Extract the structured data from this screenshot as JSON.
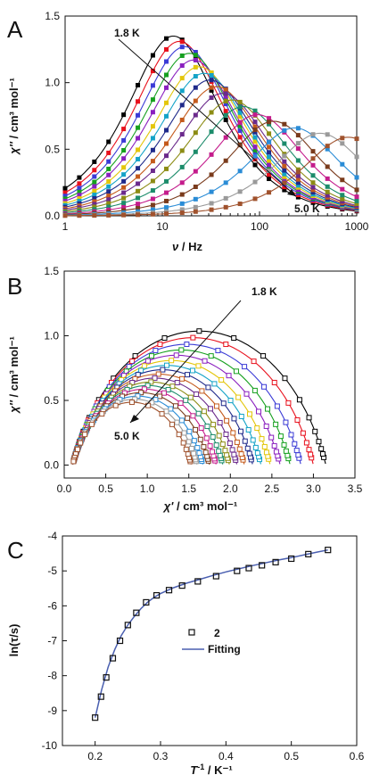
{
  "panels": [
    {
      "letter": "A",
      "xlabel_main": "ν",
      "xlabel_unit": " / Hz",
      "ylabel_main": "χ''",
      "ylabel_unit": " / cm³ mol⁻¹",
      "annotations": [
        "1.8 K",
        "5.0 K"
      ]
    },
    {
      "letter": "B",
      "xlabel_main": "χ'",
      "xlabel_unit": " / cm³ mol⁻¹",
      "ylabel_main": "χ''",
      "ylabel_unit": " / cm³ mol⁻¹",
      "annotations": [
        "1.8 K",
        "5.0 K"
      ]
    },
    {
      "letter": "C",
      "xlabel_main": "T",
      "xlabel_sup": "-1",
      "xlabel_unit": " / K⁻¹",
      "ylabel_main": "ln(τ/s)",
      "legend": [
        "2",
        "Fitting"
      ]
    }
  ],
  "chart_data": [
    {
      "type": "line",
      "xscale": "log",
      "xlim": [
        1,
        1000
      ],
      "ylim": [
        0,
        1.5
      ],
      "xticks": [
        "1",
        "10",
        "100",
        "1000"
      ],
      "yticks": [
        "0.0",
        "0.5",
        "1.0",
        "1.5"
      ],
      "x": [
        1,
        1.4,
        2,
        2.8,
        4,
        5.6,
        8,
        11,
        16,
        22,
        32,
        45,
        63,
        90,
        125,
        180,
        250,
        355,
        500,
        710,
        1000
      ],
      "temperatures_K": [
        1.8,
        2.0,
        2.2,
        2.4,
        2.6,
        2.8,
        3.0,
        3.2,
        3.4,
        3.6,
        3.8,
        4.0,
        4.2,
        4.4,
        4.6,
        4.8,
        5.0
      ],
      "series_params": [
        {
          "peak": 1.35,
          "fpeak": 13
        },
        {
          "peak": 1.31,
          "fpeak": 15
        },
        {
          "peak": 1.27,
          "fpeak": 17
        },
        {
          "peak": 1.22,
          "fpeak": 19
        },
        {
          "peak": 1.17,
          "fpeak": 21
        },
        {
          "peak": 1.12,
          "fpeak": 24
        },
        {
          "peak": 1.07,
          "fpeak": 27
        },
        {
          "peak": 1.02,
          "fpeak": 31
        },
        {
          "peak": 0.97,
          "fpeak": 36
        },
        {
          "peak": 0.92,
          "fpeak": 42
        },
        {
          "peak": 0.87,
          "fpeak": 52
        },
        {
          "peak": 0.82,
          "fpeak": 68
        },
        {
          "peak": 0.76,
          "fpeak": 95
        },
        {
          "peak": 0.71,
          "fpeak": 140
        },
        {
          "peak": 0.66,
          "fpeak": 230
        },
        {
          "peak": 0.62,
          "fpeak": 420
        },
        {
          "peak": 0.59,
          "fpeak": 820
        }
      ]
    },
    {
      "type": "scatter",
      "xlim": [
        0,
        3.5
      ],
      "ylim": [
        -0.1,
        1.5
      ],
      "xticks": [
        "0.0",
        "0.5",
        "1.0",
        "1.5",
        "2.0",
        "2.5",
        "3.0",
        "3.5"
      ],
      "yticks": [
        "0.0",
        "0.5",
        "1.0",
        "1.5"
      ],
      "series_params": [
        {
          "chi_s": 0.1,
          "chi_t": 3.15,
          "alpha": 0.24
        },
        {
          "chi_s": 0.1,
          "chi_t": 3.0,
          "alpha": 0.24
        },
        {
          "chi_s": 0.1,
          "chi_t": 2.85,
          "alpha": 0.24
        },
        {
          "chi_s": 0.1,
          "chi_t": 2.72,
          "alpha": 0.24
        },
        {
          "chi_s": 0.1,
          "chi_t": 2.6,
          "alpha": 0.24
        },
        {
          "chi_s": 0.1,
          "chi_t": 2.48,
          "alpha": 0.24
        },
        {
          "chi_s": 0.1,
          "chi_t": 2.37,
          "alpha": 0.24
        },
        {
          "chi_s": 0.1,
          "chi_t": 2.27,
          "alpha": 0.24
        },
        {
          "chi_s": 0.1,
          "chi_t": 2.17,
          "alpha": 0.24
        },
        {
          "chi_s": 0.1,
          "chi_t": 2.08,
          "alpha": 0.24
        },
        {
          "chi_s": 0.1,
          "chi_t": 1.99,
          "alpha": 0.24
        },
        {
          "chi_s": 0.1,
          "chi_t": 1.91,
          "alpha": 0.24
        },
        {
          "chi_s": 0.1,
          "chi_t": 1.83,
          "alpha": 0.24
        },
        {
          "chi_s": 0.1,
          "chi_t": 1.75,
          "alpha": 0.24
        },
        {
          "chi_s": 0.1,
          "chi_t": 1.67,
          "alpha": 0.24
        },
        {
          "chi_s": 0.1,
          "chi_t": 1.6,
          "alpha": 0.24
        },
        {
          "chi_s": 0.1,
          "chi_t": 1.53,
          "alpha": 0.24
        }
      ]
    },
    {
      "type": "scatter",
      "xlim": [
        0.15,
        0.6
      ],
      "ylim": [
        -10,
        -4
      ],
      "xticks": [
        "0.2",
        "0.3",
        "0.4",
        "0.5",
        "0.6"
      ],
      "yticks": [
        "-10",
        "-9",
        "-8",
        "-7",
        "-6",
        "-5",
        "-4"
      ],
      "series": [
        {
          "name": "2",
          "x": [
            0.2,
            0.209,
            0.217,
            0.227,
            0.238,
            0.25,
            0.263,
            0.278,
            0.294,
            0.313,
            0.333,
            0.357,
            0.385,
            0.417,
            0.435,
            0.455,
            0.476,
            0.5,
            0.526,
            0.556
          ],
          "y": [
            -9.2,
            -8.6,
            -8.05,
            -7.5,
            -7.0,
            -6.55,
            -6.2,
            -5.9,
            -5.7,
            -5.55,
            -5.42,
            -5.3,
            -5.15,
            -5.0,
            -4.92,
            -4.84,
            -4.75,
            -4.65,
            -4.52,
            -4.4
          ]
        },
        {
          "name": "Fitting",
          "x": [
            0.2,
            0.21,
            0.22,
            0.23,
            0.24,
            0.25,
            0.26,
            0.27,
            0.28,
            0.29,
            0.3,
            0.32,
            0.34,
            0.36,
            0.38,
            0.4,
            0.42,
            0.44,
            0.46,
            0.48,
            0.5,
            0.52,
            0.54,
            0.556
          ],
          "y": [
            -9.2,
            -8.4,
            -7.75,
            -7.25,
            -6.85,
            -6.55,
            -6.3,
            -6.08,
            -5.9,
            -5.76,
            -5.65,
            -5.48,
            -5.35,
            -5.24,
            -5.13,
            -5.03,
            -4.94,
            -4.85,
            -4.77,
            -4.69,
            -4.62,
            -4.54,
            -4.46,
            -4.4
          ]
        }
      ],
      "line_color": "#4a5fb0"
    }
  ],
  "palette": [
    "#000000",
    "#e8101c",
    "#3b3bd6",
    "#16a01f",
    "#8a1fbf",
    "#e3c60a",
    "#14a3c7",
    "#1f2a8a",
    "#c45a1c",
    "#6b2a8c",
    "#8c8c14",
    "#1c8c6b",
    "#c41c8c",
    "#7a3b1c",
    "#2a8cd6",
    "#9a9a9a",
    "#a0522d"
  ]
}
